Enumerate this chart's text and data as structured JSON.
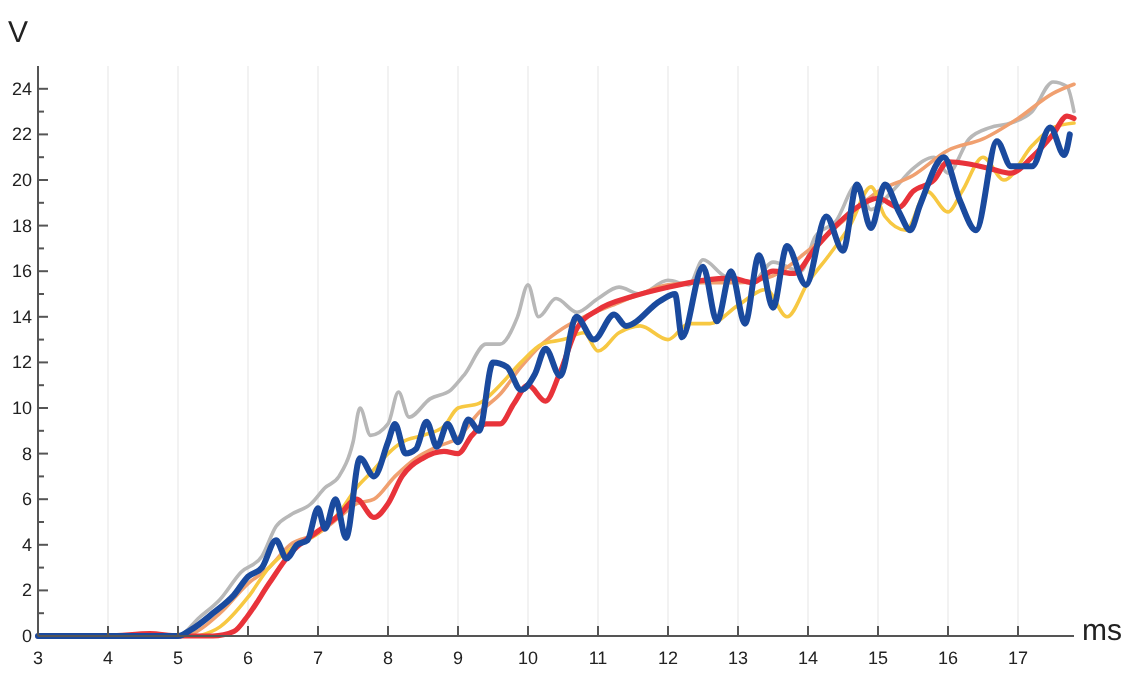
{
  "chart_data": {
    "type": "line",
    "xlabel": "ms",
    "ylabel": "V",
    "xlim": [
      3,
      17.8
    ],
    "xticks": [
      3,
      4,
      5,
      6,
      7,
      8,
      9,
      10,
      11,
      12,
      13,
      14,
      15,
      16,
      17
    ],
    "ylim": [
      0,
      25
    ],
    "yticks": [
      0,
      {
        "value": 1,
        "label": null
      },
      2,
      {
        "value": 3,
        "label": null
      },
      4,
      {
        "value": 5,
        "label": null
      },
      6,
      {
        "value": 7,
        "label": null
      },
      8,
      {
        "value": 9,
        "label": null
      },
      10,
      {
        "value": 11,
        "label": null
      },
      12,
      {
        "value": 13,
        "label": null
      },
      14,
      {
        "value": 15,
        "label": null
      },
      16,
      {
        "value": 17,
        "label": null
      },
      18,
      {
        "value": 19,
        "label": null
      },
      20,
      {
        "value": 21,
        "label": null
      },
      22,
      {
        "value": 23,
        "label": null
      },
      24
    ],
    "grid": "x",
    "marker": "none",
    "line_style": "solid",
    "series": [
      {
        "color": "#b8b8b8",
        "x": [
          3,
          4,
          5,
          5.3,
          5.6,
          5.9,
          6.2,
          6.4,
          6.6,
          6.9,
          7.1,
          7.3,
          7.5,
          7.6,
          7.75,
          8,
          8.15,
          8.3,
          8.6,
          8.9,
          9.1,
          9.4,
          9.6,
          9.85,
          10,
          10.15,
          10.4,
          10.7,
          11,
          11.3,
          11.6,
          12,
          12.3,
          12.5,
          12.8,
          13.2,
          13.5,
          13.9,
          14.1,
          14.4,
          14.7,
          14.9,
          15.2,
          15.5,
          15.8,
          16,
          16.3,
          16.6,
          16.9,
          17.2,
          17.5,
          17.7,
          17.8
        ],
        "values": [
          0,
          0,
          0,
          0.8,
          1.6,
          2.8,
          3.5,
          4.8,
          5.3,
          5.8,
          6.5,
          7,
          8.5,
          10,
          8.8,
          9.3,
          10.7,
          9.6,
          10.4,
          10.8,
          11.5,
          12.8,
          12.8,
          14,
          15.4,
          14,
          14.8,
          14.2,
          14.8,
          15.3,
          15,
          15.6,
          15.4,
          16.5,
          15.8,
          15.5,
          16.4,
          16,
          17.5,
          18.2,
          19.8,
          18.7,
          19.5,
          20.5,
          21,
          20.3,
          21.8,
          22.3,
          22.5,
          23,
          24.3,
          24.1,
          23
        ]
      },
      {
        "color": "#f0a070",
        "x": [
          3,
          4,
          5,
          5.2,
          5.6,
          6,
          6.3,
          6.6,
          7,
          7.3,
          7.55,
          7.8,
          8.1,
          8.4,
          8.7,
          9,
          9.3,
          9.6,
          9.9,
          10.2,
          10.5,
          10.8,
          11.2,
          11.6,
          12,
          12.5,
          13,
          13.5,
          14,
          14.5,
          15,
          15.5,
          16,
          16.5,
          17,
          17.5,
          17.8
        ],
        "values": [
          0,
          0,
          0,
          0.1,
          1,
          2.3,
          3,
          4,
          4.5,
          5.2,
          5.8,
          6,
          7,
          7.8,
          8.3,
          8.7,
          9.8,
          10.6,
          11.8,
          12.8,
          13.5,
          14,
          14.5,
          15,
          15.4,
          15.5,
          15.5,
          15.8,
          16.9,
          18.2,
          19.5,
          20.2,
          21.3,
          21.8,
          22.7,
          23.8,
          24.2
        ]
      },
      {
        "color": "#f7c842",
        "x": [
          5.3,
          5.6,
          6,
          6.3,
          6.6,
          7,
          7.3,
          7.55,
          7.8,
          8,
          8.2,
          8.5,
          8.8,
          9,
          9.3,
          9.6,
          9.9,
          10.2,
          10.5,
          10.8,
          11,
          11.3,
          11.6,
          12,
          12.3,
          12.6,
          13,
          13.4,
          13.7,
          14,
          14.3,
          14.6,
          14.9,
          15.1,
          15.4,
          15.7,
          16,
          16.2,
          16.5,
          16.8,
          17.2,
          17.5,
          17.8
        ],
        "values": [
          0,
          0.4,
          1.7,
          3,
          3.8,
          4.5,
          5.4,
          6.5,
          7.3,
          8,
          8.5,
          8.8,
          9.2,
          10,
          10.2,
          11,
          12,
          12.8,
          13,
          13.3,
          12.5,
          13.3,
          13.6,
          13,
          13.7,
          13.7,
          14.5,
          15.2,
          14,
          15.5,
          16.7,
          18,
          19.7,
          18.4,
          17.8,
          19.5,
          18.6,
          19.5,
          21,
          20,
          21.5,
          22.3,
          22.5
        ]
      },
      {
        "color": "#e8333a",
        "x": [
          3,
          4,
          4.6,
          5,
          5.5,
          5.8,
          6,
          6.3,
          6.6,
          7,
          7.3,
          7.55,
          7.8,
          8,
          8.2,
          8.5,
          8.8,
          9,
          9.2,
          9.4,
          9.6,
          9.8,
          10,
          10.25,
          10.45,
          10.7,
          11,
          11.5,
          12,
          12.5,
          12.9,
          13.2,
          13.5,
          13.8,
          14.1,
          14.4,
          14.7,
          15,
          15.3,
          15.5,
          15.8,
          16,
          16.3,
          16.6,
          16.9,
          17.2,
          17.5,
          17.7,
          17.8
        ],
        "values": [
          0,
          0,
          0.1,
          0,
          0,
          0.2,
          0.9,
          2.3,
          3.6,
          4.6,
          5.3,
          6,
          5.2,
          5.8,
          7,
          7.8,
          8.1,
          8,
          8.8,
          9.3,
          9.3,
          10.2,
          11,
          10.3,
          11.5,
          13.5,
          14.3,
          14.9,
          15.3,
          15.6,
          15.7,
          15.5,
          16,
          15.9,
          17,
          18,
          18.8,
          19.2,
          18.8,
          19.5,
          20,
          20.8,
          20.7,
          20.5,
          20.3,
          21,
          22,
          22.8,
          22.7
        ]
      },
      {
        "color": "#1a4a9e",
        "x": [
          3,
          4,
          5,
          5.2,
          5.5,
          5.8,
          6,
          6.2,
          6.4,
          6.55,
          6.7,
          6.85,
          7,
          7.1,
          7.25,
          7.4,
          7.6,
          7.8,
          8,
          8.1,
          8.25,
          8.4,
          8.55,
          8.7,
          8.85,
          9,
          9.15,
          9.3,
          9.5,
          9.7,
          9.9,
          10.1,
          10.25,
          10.46,
          10.69,
          10.94,
          11.23,
          11.4,
          11.89,
          12.1,
          12.2,
          12.5,
          12.7,
          12.9,
          13.1,
          13.3,
          13.5,
          13.7,
          13.97,
          14.26,
          14.5,
          14.7,
          14.9,
          15.1,
          15.3,
          15.46,
          15.6,
          15.94,
          16.17,
          16.4,
          16.7,
          16.9,
          17.2,
          17.46,
          17.66,
          17.74
        ],
        "values": [
          0,
          0,
          0,
          0.3,
          1,
          1.8,
          2.6,
          3,
          4.2,
          3.4,
          4,
          4.2,
          5.6,
          4.7,
          6,
          4.3,
          7.8,
          7,
          8.5,
          9.3,
          8,
          8.2,
          9.4,
          8.3,
          9.3,
          8.5,
          9.5,
          9,
          12,
          11.8,
          10.8,
          11.5,
          12.6,
          11.4,
          14,
          13,
          14.1,
          13.6,
          14.7,
          15,
          13.1,
          16.2,
          13.8,
          16,
          13.7,
          16.7,
          14.4,
          17.1,
          15.4,
          18.4,
          16.9,
          19.8,
          17.9,
          19.8,
          18.6,
          17.8,
          18.9,
          21,
          19.1,
          17.8,
          21.7,
          20.6,
          20.6,
          22.3,
          21.1,
          22
        ]
      }
    ]
  }
}
